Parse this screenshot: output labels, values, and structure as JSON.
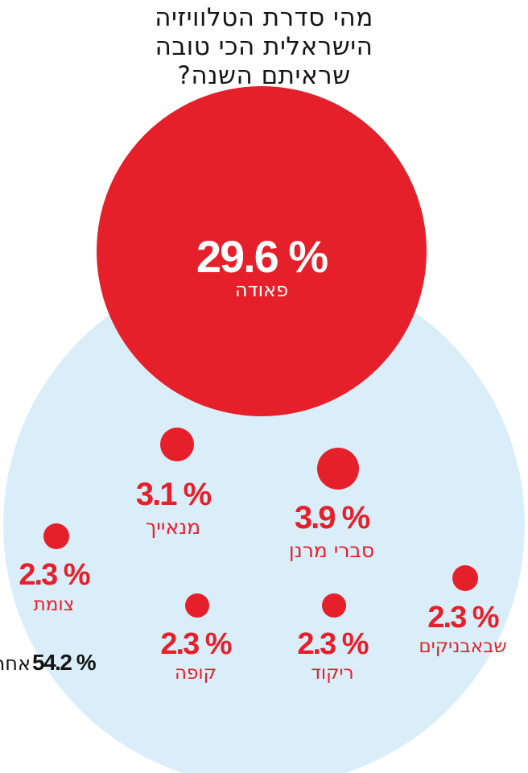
{
  "title_lines": [
    "מהי סדרת הטלוויזיה",
    "הישראלית הכי טובה",
    "שראיתם השנה?"
  ],
  "colors": {
    "highlight": "#e5202a",
    "background_circle": "#daeefa",
    "text_dark": "#151515",
    "text_on_red": "#ffffff"
  },
  "chart_data": {
    "type": "bubble",
    "title": "מהי סדרת הטלוויזיה הישראלית הכי טובה שראיתם השנה?",
    "unit": "%",
    "items": [
      {
        "name": "פאודה",
        "value": 29.6
      },
      {
        "name": "סברי מרנן",
        "value": 3.9
      },
      {
        "name": "מנאייך",
        "value": 3.1
      },
      {
        "name": "צומת",
        "value": 2.3
      },
      {
        "name": "שבאבניקים",
        "value": 2.3
      },
      {
        "name": "קופה",
        "value": 2.3
      },
      {
        "name": "ריקוד",
        "value": 2.3
      },
      {
        "name": "אחר",
        "value": 54.2
      }
    ]
  }
}
